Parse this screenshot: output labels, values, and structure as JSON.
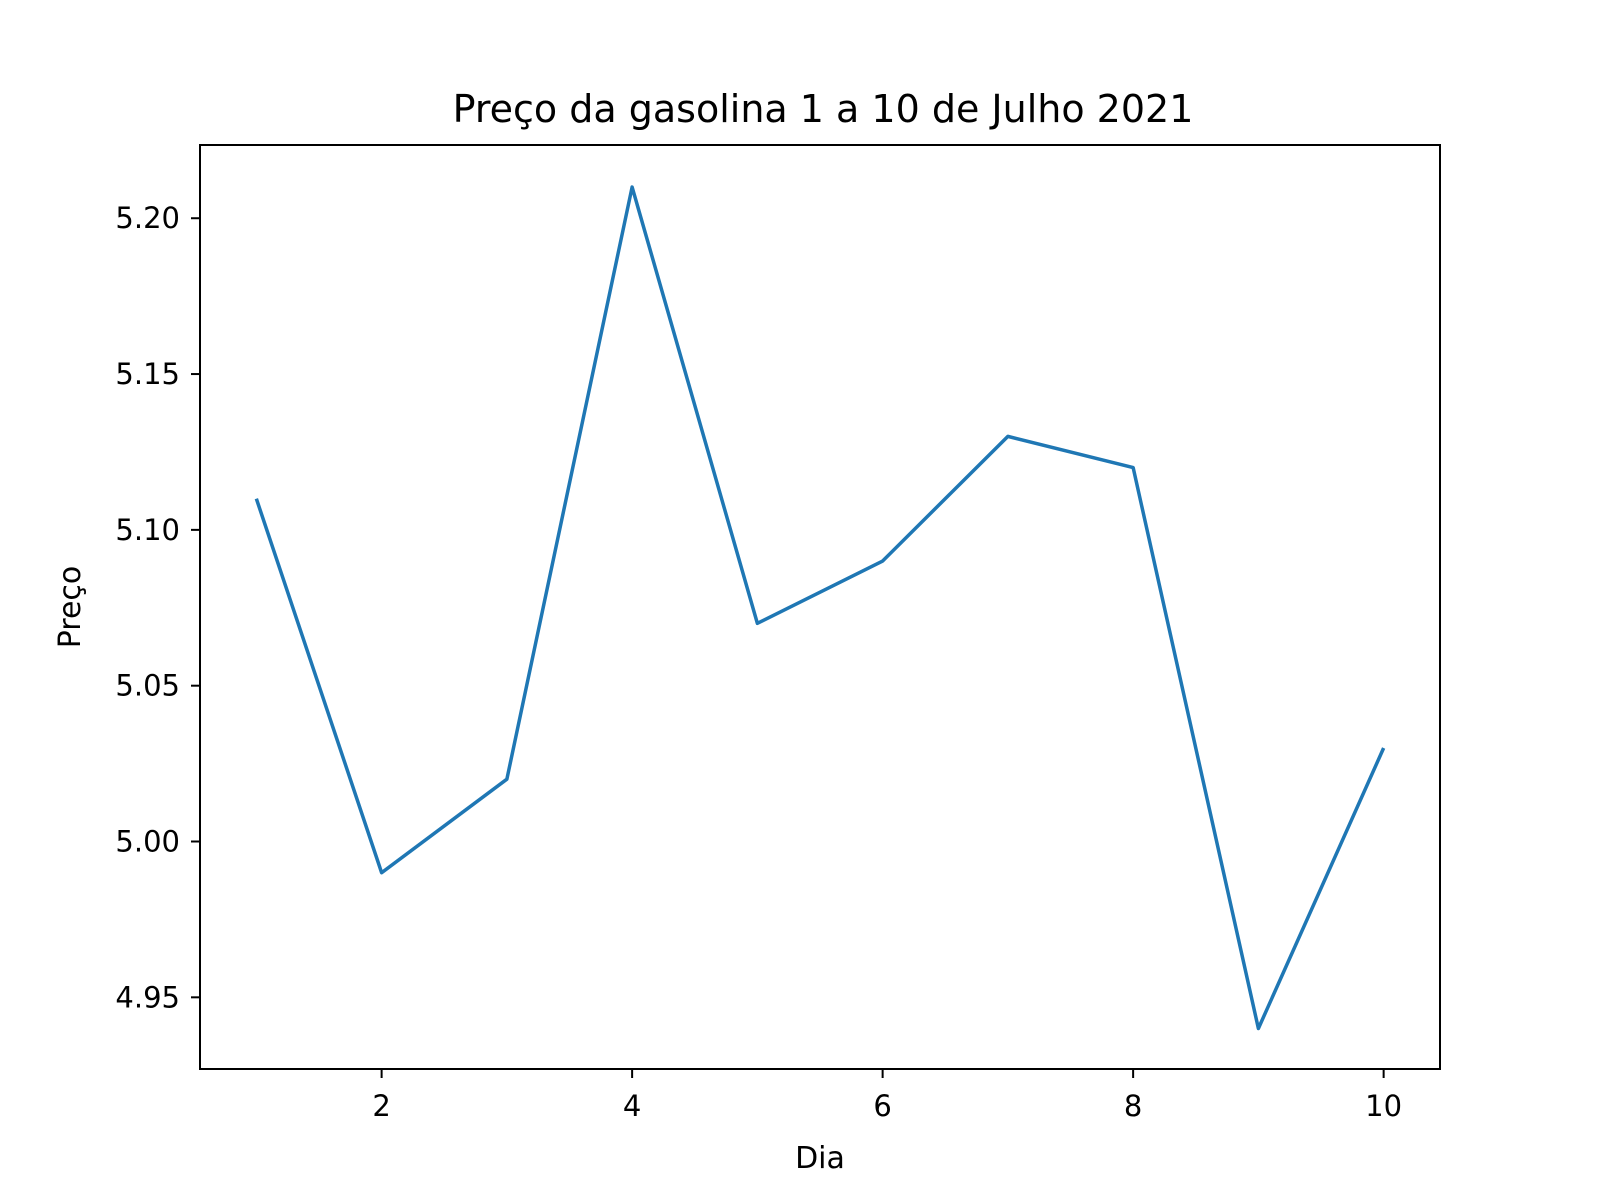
{
  "chart_data": {
    "type": "line",
    "title": "Preço da gasolina 1 a 10 de Julho 2021",
    "xlabel": "Dia",
    "ylabel": "Preço",
    "x": [
      1,
      2,
      3,
      4,
      5,
      6,
      7,
      8,
      9,
      10
    ],
    "series": [
      {
        "values": [
          5.11,
          4.99,
          5.02,
          5.21,
          5.07,
          5.09,
          5.13,
          5.12,
          4.94,
          5.03
        ],
        "color": "#1f77b4"
      }
    ],
    "xlim": [
      0.55,
      10.45
    ],
    "ylim": [
      4.927,
      5.2235
    ],
    "xticks": [
      2,
      4,
      6,
      8,
      10
    ],
    "xtick_labels": [
      "2",
      "4",
      "6",
      "8",
      "10"
    ],
    "yticks": [
      4.95,
      5.0,
      5.05,
      5.1,
      5.15,
      5.2
    ],
    "ytick_labels": [
      "4.95",
      "5.00",
      "5.05",
      "5.10",
      "5.15",
      "5.20"
    ],
    "grid": false,
    "legend": "none"
  }
}
